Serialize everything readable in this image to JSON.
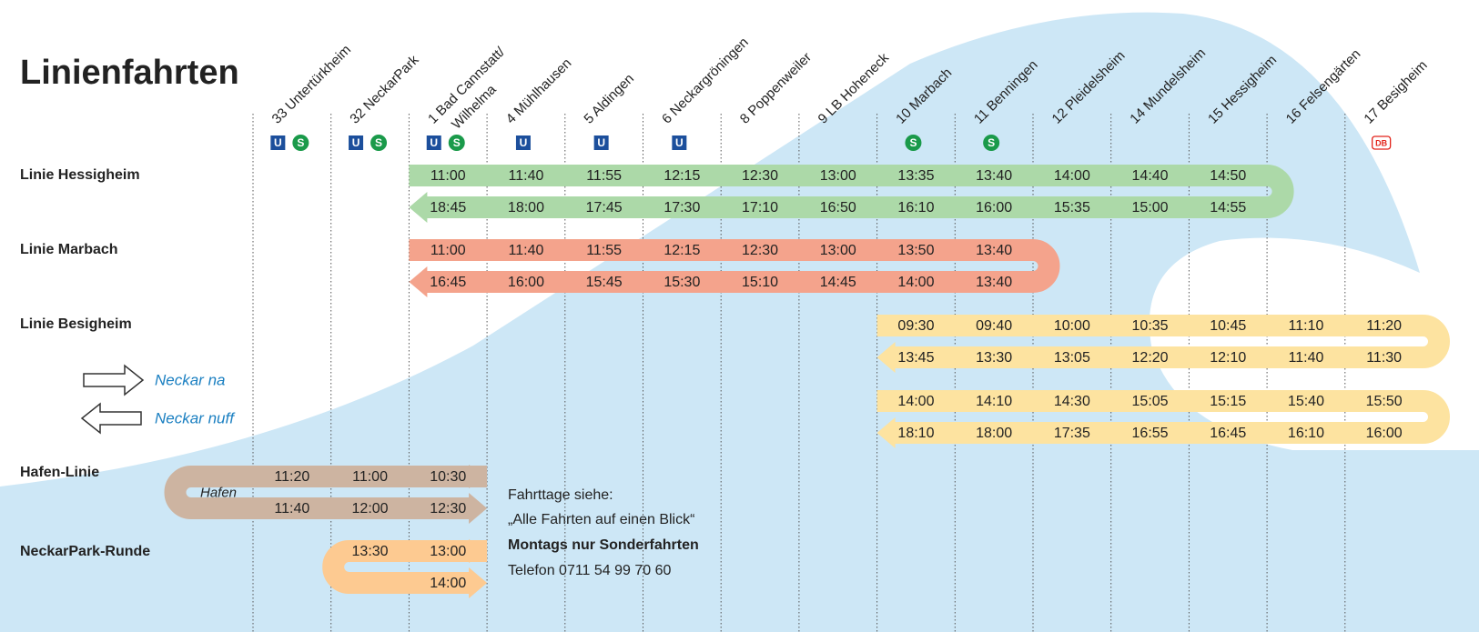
{
  "title": "Linienfahrten",
  "stations": [
    {
      "label": [
        "33 Untertürkheim"
      ],
      "icons": [
        "U",
        "S"
      ]
    },
    {
      "label": [
        "32 NeckarPark"
      ],
      "icons": [
        "U",
        "S"
      ]
    },
    {
      "label": [
        "1 Bad Cannstatt/",
        "Wilhelma"
      ],
      "icons": [
        "U",
        "S"
      ]
    },
    {
      "label": [
        "4 Mühlhausen"
      ],
      "icons": [
        "U"
      ]
    },
    {
      "label": [
        "5 Aldingen"
      ],
      "icons": [
        "U"
      ]
    },
    {
      "label": [
        "6 Neckargröningen"
      ],
      "icons": [
        "U"
      ]
    },
    {
      "label": [
        "8 Poppenweiler"
      ],
      "icons": []
    },
    {
      "label": [
        "9 LB Hoheneck"
      ],
      "icons": []
    },
    {
      "label": [
        "10 Marbach"
      ],
      "icons": [
        "S"
      ]
    },
    {
      "label": [
        "11 Benningen"
      ],
      "icons": [
        "S"
      ]
    },
    {
      "label": [
        "12 Pleidelsheim"
      ],
      "icons": []
    },
    {
      "label": [
        "14 Mundelsheim"
      ],
      "icons": []
    },
    {
      "label": [
        "15 Hessigheim"
      ],
      "icons": []
    },
    {
      "label": [
        "16 Felsengärten"
      ],
      "icons": []
    },
    {
      "label": [
        "17 Besigheim"
      ],
      "icons": [
        "DB"
      ]
    }
  ],
  "lines": [
    {
      "name": "Linie Hessigheim",
      "trips": [
        {
          "top": [
            "11:00",
            "11:40",
            "11:55",
            "12:15",
            "12:30",
            "13:00",
            "13:35",
            "13:40",
            "14:00",
            "14:40",
            "14:50"
          ],
          "bottom": [
            "18:45",
            "18:00",
            "17:45",
            "17:30",
            "17:10",
            "16:50",
            "16:10",
            "16:00",
            "15:35",
            "15:00",
            "14:55"
          ]
        }
      ]
    },
    {
      "name": "Linie Marbach",
      "trips": [
        {
          "top": [
            "11:00",
            "11:40",
            "11:55",
            "12:15",
            "12:30",
            "13:00",
            "13:50",
            "13:40"
          ],
          "bottom": [
            "16:45",
            "16:00",
            "15:45",
            "15:30",
            "15:10",
            "14:45",
            "14:00",
            "13:40"
          ]
        }
      ]
    },
    {
      "name": "Linie Besigheim",
      "trips": [
        {
          "top": [
            "09:30",
            "09:40",
            "10:00",
            "10:35",
            "10:45",
            "11:10",
            "11:20"
          ],
          "bottom": [
            "13:45",
            "13:30",
            "13:05",
            "12:20",
            "12:10",
            "11:40",
            "11:30"
          ]
        },
        {
          "top": [
            "14:00",
            "14:10",
            "14:30",
            "15:05",
            "15:15",
            "15:40",
            "15:50"
          ],
          "bottom": [
            "18:10",
            "18:00",
            "17:35",
            "16:55",
            "16:45",
            "16:10",
            "16:00"
          ]
        }
      ]
    },
    {
      "name": "Hafen-Linie",
      "turn_label": "Hafen",
      "trips": [
        {
          "top": [
            "11:20",
            "11:00",
            "10:30"
          ],
          "bottom": [
            "11:40",
            "12:00",
            "12:30"
          ]
        }
      ]
    },
    {
      "name": "NeckarPark-Runde",
      "trips": [
        {
          "top": [
            "13:30",
            "13:00"
          ],
          "bottom": [
            "14:00"
          ]
        }
      ]
    }
  ],
  "legend": [
    {
      "label": "Neckar na"
    },
    {
      "label": "Neckar nuff"
    }
  ],
  "info": [
    "Fahrttage siehe:",
    "„Alle Fahrten auf einen Blick“",
    "Montags nur Sonderfahrten",
    "Telefon 0711 54 99 70 60"
  ]
}
